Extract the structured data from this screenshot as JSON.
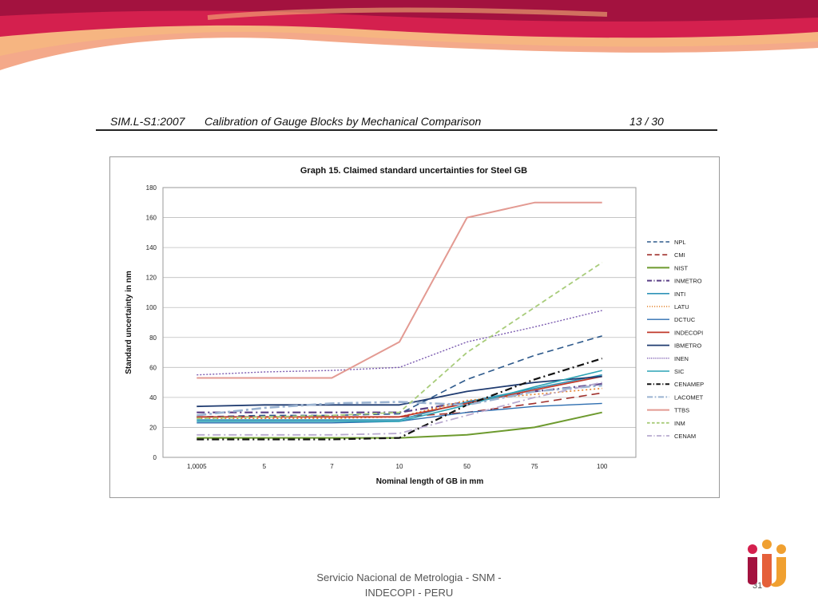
{
  "document": {
    "reference": "SIM.L-S1:2007",
    "title": "Calibration of Gauge Blocks by Mechanical Comparison",
    "page": "13 / 30"
  },
  "footer": {
    "line1": "Servicio Nacional de Metrologia - SNM -",
    "line2": "INDECOPI - PERU",
    "slide_number": "31"
  },
  "colors": {
    "banner_dark": "#a3123f",
    "banner_mid": "#d4204e",
    "banner_light": "#f4a98a",
    "banner_orange": "#f7c07a"
  },
  "chart_data": {
    "type": "line",
    "title": "Graph 15. Claimed standard uncertainties for Steel GB",
    "xlabel": "Nominal length of GB in mm",
    "ylabel": "Standard uncertainty in nm",
    "categories": [
      "1,0005",
      "5",
      "7",
      "10",
      "50",
      "75",
      "100"
    ],
    "ylim": [
      0,
      180
    ],
    "yticks": [
      0,
      20,
      40,
      60,
      80,
      100,
      120,
      140,
      160,
      180
    ],
    "grid": "horizontal",
    "legend_position": "right",
    "series": [
      {
        "name": "NPL",
        "color": "#2e5a8c",
        "dash": "8,5",
        "width": 1.6,
        "values": [
          27,
          28,
          28,
          29,
          52,
          68,
          81
        ]
      },
      {
        "name": "CMI",
        "color": "#a0302c",
        "dash": "10,6",
        "width": 1.6,
        "values": [
          27,
          27,
          27,
          27,
          30,
          36,
          43
        ]
      },
      {
        "name": "NIST",
        "color": "#6d9a2e",
        "dash": "",
        "width": 2,
        "values": [
          13,
          13,
          13,
          13,
          15,
          20,
          30
        ]
      },
      {
        "name": "INMETRO",
        "color": "#5a3f86",
        "dash": "10,4,2,4",
        "width": 2.2,
        "values": [
          30,
          30,
          30,
          30,
          37,
          44,
          49
        ]
      },
      {
        "name": "INTI",
        "color": "#2f93b8",
        "dash": "",
        "width": 1.6,
        "values": [
          25,
          25,
          25,
          25,
          37,
          46,
          55
        ]
      },
      {
        "name": "LATU",
        "color": "#e3822a",
        "dash": "2,3",
        "width": 1.6,
        "values": [
          26,
          26,
          26,
          27,
          38,
          42,
          46
        ]
      },
      {
        "name": "DCTUC",
        "color": "#2e6eb0",
        "dash": "",
        "width": 1.4,
        "values": [
          23,
          23,
          23,
          24,
          30,
          34,
          36
        ]
      },
      {
        "name": "INDECOPI",
        "color": "#c0392b",
        "dash": "",
        "width": 1.8,
        "values": [
          27,
          27,
          27,
          27,
          36,
          45,
          54
        ]
      },
      {
        "name": "IBMETRO",
        "color": "#1f3b70",
        "dash": "",
        "width": 1.8,
        "values": [
          34,
          35,
          35,
          35,
          44,
          50,
          54
        ]
      },
      {
        "name": "INEN",
        "color": "#7b5bb0",
        "dash": "2,2",
        "width": 1.4,
        "values": [
          55,
          57,
          58,
          60,
          77,
          87,
          98
        ]
      },
      {
        "name": "SIC",
        "color": "#2ba3b5",
        "dash": "",
        "width": 1.6,
        "values": [
          24,
          24,
          24,
          24,
          35,
          47,
          58
        ]
      },
      {
        "name": "CENAMEP",
        "color": "#111111",
        "dash": "9,4,2,4",
        "width": 2.2,
        "values": [
          12,
          12,
          12,
          13,
          35,
          52,
          66
        ]
      },
      {
        "name": "LACOMET",
        "color": "#9bb3d1",
        "dash": "12,4,3,4",
        "width": 2.6,
        "values": [
          28,
          33,
          36,
          37,
          35,
          44,
          48
        ]
      },
      {
        "name": "TTBS",
        "color": "#e39a92",
        "dash": "",
        "width": 2,
        "values": [
          53,
          53,
          53,
          77,
          160,
          170,
          170
        ]
      },
      {
        "name": "INM",
        "color": "#a8cc7a",
        "dash": "6,4",
        "width": 1.8,
        "values": [
          26,
          27,
          28,
          30,
          70,
          100,
          130
        ]
      },
      {
        "name": "CENAM",
        "color": "#b8a9cf",
        "dash": "10,4,2,4",
        "width": 1.8,
        "values": [
          15,
          15,
          15,
          16,
          28,
          40,
          50
        ]
      }
    ]
  }
}
